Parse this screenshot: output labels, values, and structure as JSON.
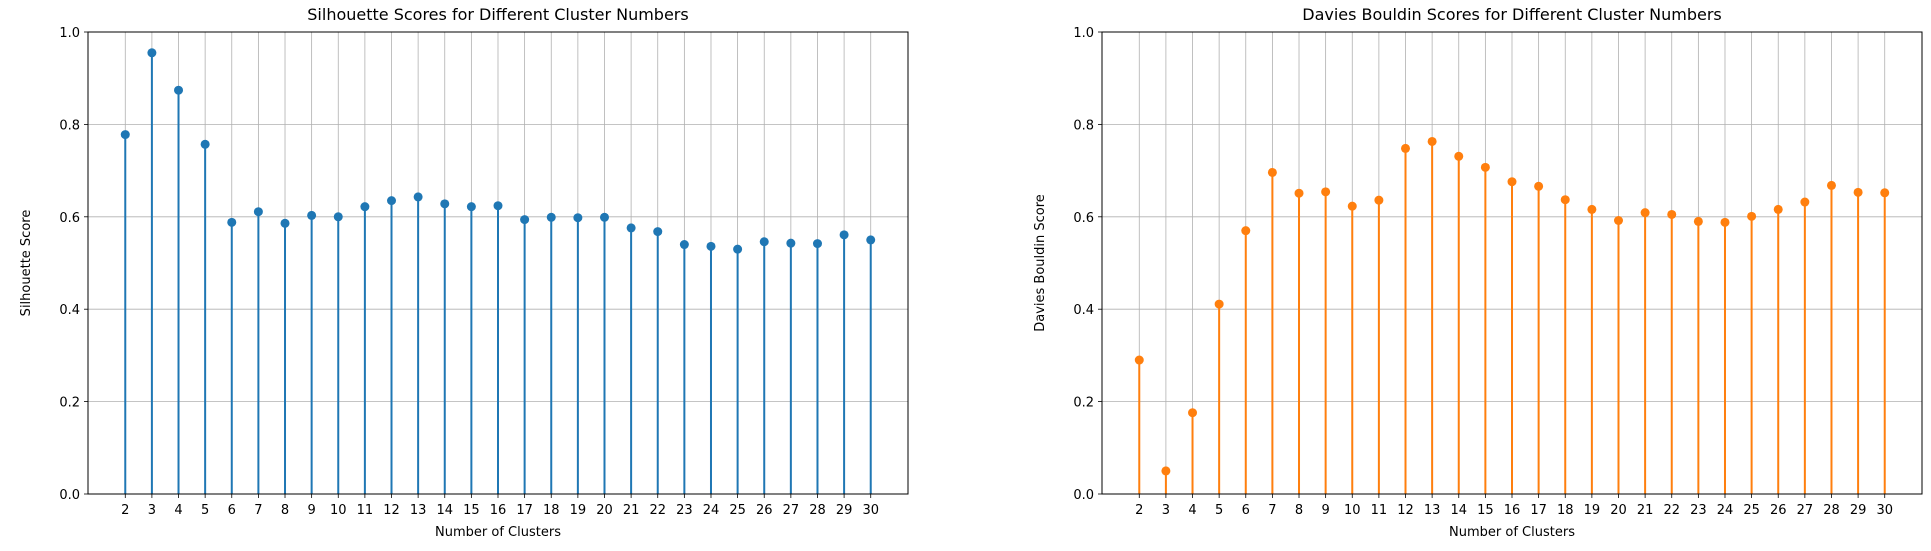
{
  "chart_data": [
    {
      "type": "stem",
      "title": "Silhouette Scores for Different Cluster Numbers",
      "xlabel": "Number of Clusters",
      "ylabel": "Silhouette Score",
      "x": [
        2,
        3,
        4,
        5,
        6,
        7,
        8,
        9,
        10,
        11,
        12,
        13,
        14,
        15,
        16,
        17,
        18,
        19,
        20,
        21,
        22,
        23,
        24,
        25,
        26,
        27,
        28,
        29,
        30
      ],
      "values": [
        0.778,
        0.955,
        0.874,
        0.757,
        0.588,
        0.611,
        0.586,
        0.603,
        0.6,
        0.622,
        0.635,
        0.643,
        0.628,
        0.622,
        0.624,
        0.594,
        0.599,
        0.598,
        0.599,
        0.576,
        0.568,
        0.54,
        0.536,
        0.53,
        0.546,
        0.543,
        0.542,
        0.561,
        0.55
      ],
      "ylim": [
        0,
        1.0
      ],
      "yticks": [
        "0.0",
        "0.2",
        "0.4",
        "0.6",
        "0.8",
        "1.0"
      ],
      "grid": true,
      "color": "#1f77b4"
    },
    {
      "type": "stem",
      "title": "Davies Bouldin Scores for Different Cluster Numbers",
      "xlabel": "Number of Clusters",
      "ylabel": "Davies Bouldin Score",
      "x": [
        2,
        3,
        4,
        5,
        6,
        7,
        8,
        9,
        10,
        11,
        12,
        13,
        14,
        15,
        16,
        17,
        18,
        19,
        20,
        21,
        22,
        23,
        24,
        25,
        26,
        27,
        28,
        29,
        30
      ],
      "values": [
        0.29,
        0.05,
        0.176,
        0.411,
        0.57,
        0.696,
        0.651,
        0.654,
        0.623,
        0.636,
        0.748,
        0.763,
        0.731,
        0.707,
        0.676,
        0.666,
        0.637,
        0.616,
        0.592,
        0.609,
        0.605,
        0.59,
        0.588,
        0.601,
        0.616,
        0.632,
        0.668,
        0.653,
        0.652
      ],
      "ylim": [
        0,
        1.0
      ],
      "yticks": [
        "0.0",
        "0.2",
        "0.4",
        "0.6",
        "0.8",
        "1.0"
      ],
      "grid": true,
      "color": "#ff7f0e"
    }
  ]
}
